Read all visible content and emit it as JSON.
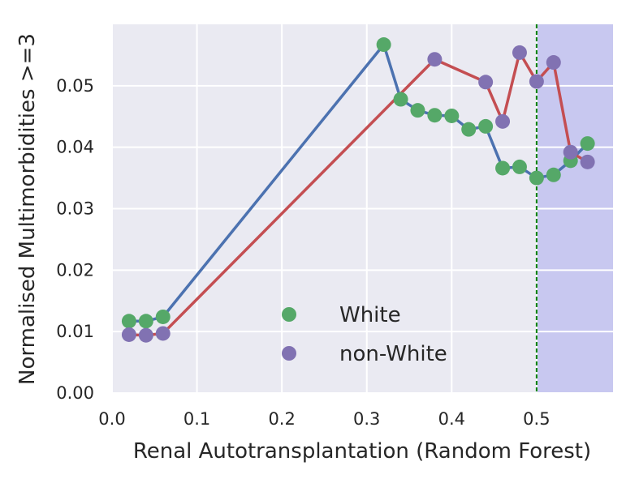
{
  "chart_data": {
    "type": "line",
    "title": "",
    "xlabel": "Renal Autotransplantation (Random Forest)",
    "ylabel": "Normalised Multimorbidities >=3",
    "xlim": [
      0.0,
      0.59
    ],
    "ylim": [
      0.0,
      0.06
    ],
    "xticks": [
      0.0,
      0.1,
      0.2,
      0.3,
      0.4,
      0.5
    ],
    "xtick_labels": [
      "0.0",
      "0.1",
      "0.2",
      "0.3",
      "0.4",
      "0.5"
    ],
    "yticks": [
      0.0,
      0.01,
      0.02,
      0.03,
      0.04,
      0.05
    ],
    "ytick_labels": [
      "0.00",
      "0.01",
      "0.02",
      "0.03",
      "0.04",
      "0.05"
    ],
    "grid": true,
    "threshold": 0.5,
    "shaded_region": [
      0.5,
      0.59
    ],
    "legend_position": "lower-center",
    "colors": {
      "background": "#eaeaf2",
      "grid": "#ffffff",
      "white_line": "#4c72b0",
      "white_marker": "#55a868",
      "nonwhite_line": "#c44e52",
      "nonwhite_marker": "#8172b2",
      "threshold": "#008000",
      "shade": "#c8c8f0"
    },
    "series": [
      {
        "name": "White",
        "x": [
          0.02,
          0.04,
          0.06,
          0.32,
          0.34,
          0.36,
          0.38,
          0.4,
          0.42,
          0.44,
          0.46,
          0.48,
          0.5,
          0.52,
          0.54,
          0.56
        ],
        "values": [
          0.0117,
          0.0117,
          0.0124,
          0.0567,
          0.0478,
          0.046,
          0.0452,
          0.0451,
          0.0429,
          0.0434,
          0.0366,
          0.0368,
          0.035,
          0.0355,
          0.0378,
          0.0406
        ]
      },
      {
        "name": "non-White",
        "x": [
          0.02,
          0.04,
          0.06,
          0.38,
          0.44,
          0.46,
          0.48,
          0.5,
          0.52,
          0.54,
          0.56
        ],
        "values": [
          0.0095,
          0.0094,
          0.0097,
          0.0543,
          0.0506,
          0.0442,
          0.0554,
          0.0507,
          0.0538,
          0.0392,
          0.0376
        ]
      }
    ]
  }
}
